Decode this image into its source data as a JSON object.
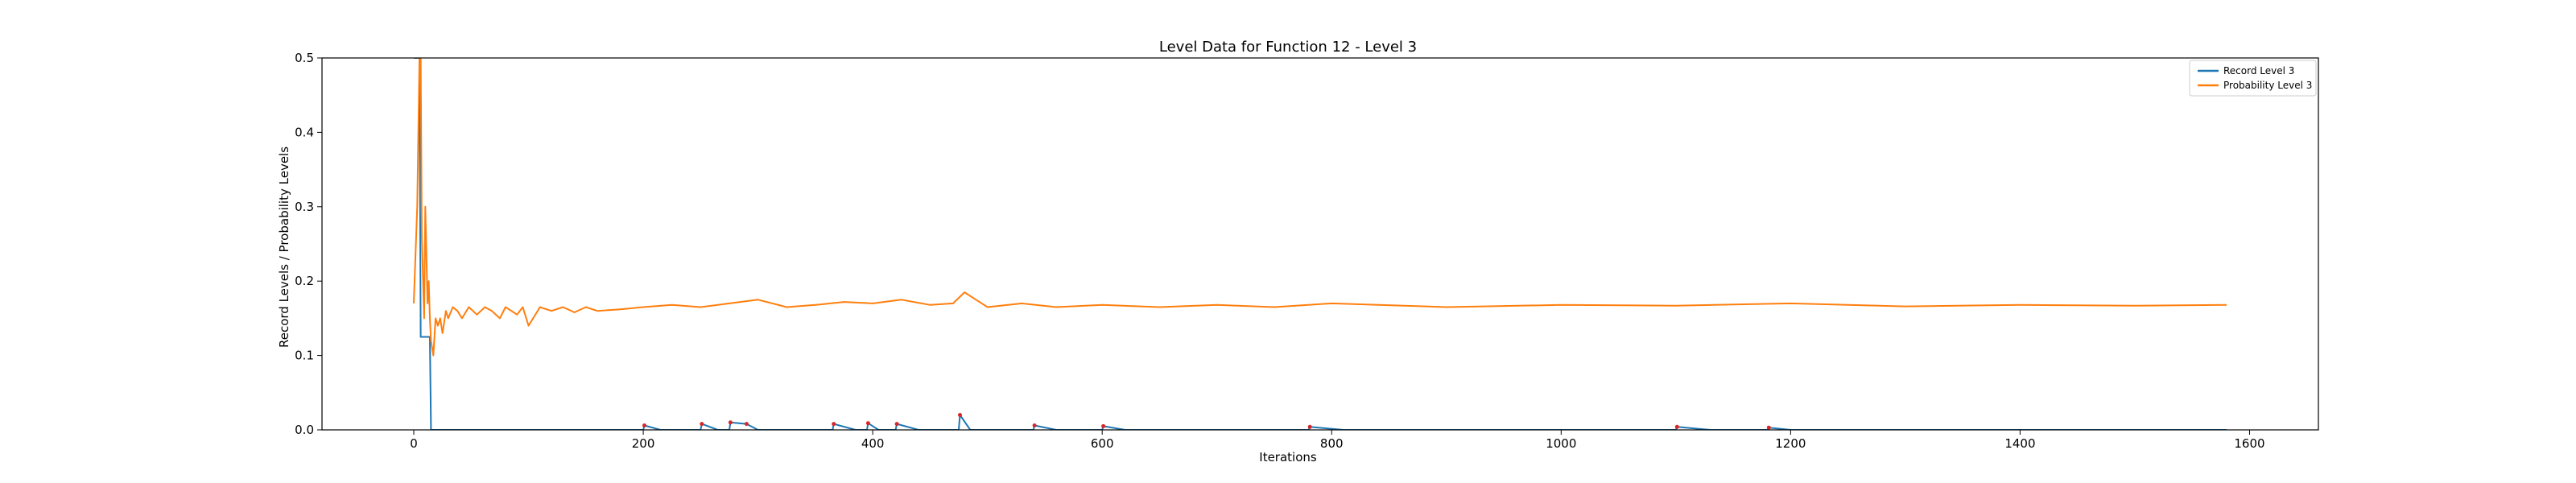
{
  "chart_data": {
    "type": "line",
    "title": "Level Data for Function 12 - Level 3",
    "xlabel": "Iterations",
    "ylabel": "Record Levels / Probability Levels",
    "xlim": [
      -80,
      1660
    ],
    "ylim": [
      0,
      0.5
    ],
    "xticks": [
      0,
      200,
      400,
      600,
      800,
      1000,
      1200,
      1400,
      1600
    ],
    "yticks": [
      0.0,
      0.1,
      0.2,
      0.3,
      0.4,
      0.5
    ],
    "ytick_labels": [
      "0.0",
      "0.1",
      "0.2",
      "0.3",
      "0.4",
      "0.5"
    ],
    "grid": false,
    "legend_position": "top-right",
    "colors": {
      "record": "#1f77b4",
      "probability": "#ff7f0e",
      "markers": "#d62728"
    },
    "series": [
      {
        "name": "Record Level 3",
        "color": "#1f77b4",
        "x": [
          0,
          5,
          6,
          14,
          15,
          200,
          201,
          215,
          250,
          251,
          265,
          275,
          276,
          290,
          300,
          301,
          320,
          365,
          366,
          385,
          395,
          396,
          405,
          420,
          421,
          440,
          475,
          476,
          485,
          540,
          541,
          560,
          600,
          601,
          620,
          780,
          781,
          810,
          1100,
          1101,
          1130,
          1180,
          1181,
          1200,
          1580
        ],
        "y": [
          0.5,
          0.5,
          0.125,
          0.125,
          0.0,
          0.0,
          0.006,
          0.0,
          0.0,
          0.008,
          0.0,
          0.0,
          0.01,
          0.008,
          0.0,
          0.0,
          0.0,
          0.0,
          0.008,
          0.0,
          0.0,
          0.009,
          0.0,
          0.0,
          0.008,
          0.0,
          0.0,
          0.02,
          0.0,
          0.0,
          0.006,
          0.0,
          0.0,
          0.005,
          0.0,
          0.0,
          0.004,
          0.0,
          0.0,
          0.004,
          0.0,
          0.0,
          0.003,
          0.0,
          0.0
        ]
      },
      {
        "name": "Probability Level 3",
        "color": "#ff7f0e",
        "x": [
          0,
          3,
          5,
          6,
          7,
          9,
          10,
          12,
          13,
          14,
          15,
          17,
          19,
          21,
          23,
          25,
          28,
          30,
          34,
          38,
          42,
          48,
          55,
          62,
          68,
          75,
          80,
          85,
          90,
          95,
          100,
          110,
          120,
          130,
          140,
          150,
          160,
          180,
          200,
          225,
          250,
          275,
          300,
          325,
          350,
          375,
          400,
          425,
          450,
          470,
          480,
          490,
          500,
          530,
          560,
          600,
          650,
          700,
          750,
          800,
          900,
          1000,
          1100,
          1200,
          1300,
          1400,
          1500,
          1580
        ],
        "y": [
          0.17,
          0.3,
          0.5,
          0.5,
          0.26,
          0.15,
          0.3,
          0.17,
          0.2,
          0.15,
          0.12,
          0.1,
          0.15,
          0.14,
          0.15,
          0.13,
          0.16,
          0.15,
          0.165,
          0.16,
          0.15,
          0.165,
          0.155,
          0.165,
          0.16,
          0.15,
          0.165,
          0.16,
          0.155,
          0.165,
          0.14,
          0.165,
          0.16,
          0.165,
          0.158,
          0.165,
          0.16,
          0.162,
          0.165,
          0.168,
          0.165,
          0.17,
          0.175,
          0.165,
          0.168,
          0.172,
          0.17,
          0.175,
          0.168,
          0.17,
          0.185,
          0.175,
          0.165,
          0.17,
          0.165,
          0.168,
          0.165,
          0.168,
          0.165,
          0.17,
          0.165,
          0.168,
          0.167,
          0.17,
          0.166,
          0.168,
          0.167,
          0.168
        ]
      }
    ]
  }
}
